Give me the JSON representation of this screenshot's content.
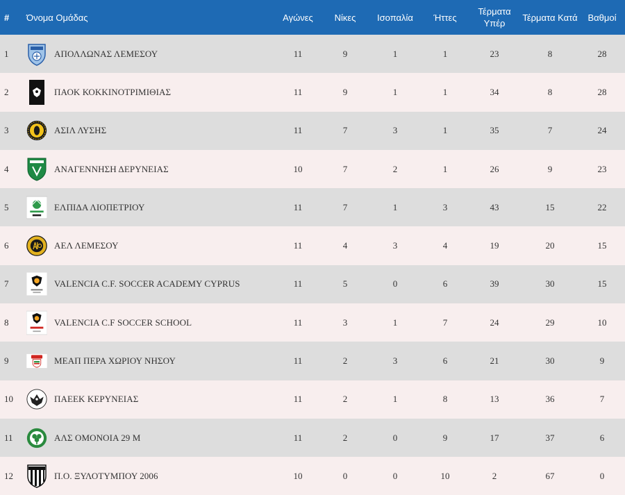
{
  "headers": {
    "pos": "#",
    "team": "Όνομα Ομάδας",
    "played": "Αγώνες",
    "wins": "Νίκες",
    "draws": "Ισοπαλία",
    "losses": "Ήττες",
    "gf": "Τέρματα Υπέρ",
    "ga": "Τέρματα Κατά",
    "pts": "Βαθμοί"
  },
  "colors": {
    "header_bg": "#1e6ab4",
    "row_odd": "#dddddd",
    "row_even": "#f8eeee"
  },
  "rows": [
    {
      "pos": "1",
      "team": "ΑΠΟΛΛΩΝΑΣ ΛΕΜΕΣΟΥ",
      "logo": "apollon-shield-icon",
      "played": "11",
      "wins": "9",
      "draws": "1",
      "losses": "1",
      "gf": "23",
      "ga": "8",
      "pts": "28"
    },
    {
      "pos": "2",
      "team": "ΠΑΟΚ ΚΟΚΚΙΝΟΤΡΙΜΙΘΙΑΣ",
      "logo": "paok-eagle-icon",
      "played": "11",
      "wins": "9",
      "draws": "1",
      "losses": "1",
      "gf": "34",
      "ga": "8",
      "pts": "28"
    },
    {
      "pos": "3",
      "team": "ΑΣΙΛ ΛΥΣΗΣ",
      "logo": "asil-round-crest-icon",
      "played": "11",
      "wins": "7",
      "draws": "3",
      "losses": "1",
      "gf": "35",
      "ga": "7",
      "pts": "24"
    },
    {
      "pos": "4",
      "team": "ΑΝΑΓΕΝΝΗΣΗ ΔΕΡΥΝΕΙΑΣ",
      "logo": "anagennisi-shield-icon",
      "played": "10",
      "wins": "7",
      "draws": "2",
      "losses": "1",
      "gf": "26",
      "ga": "9",
      "pts": "23"
    },
    {
      "pos": "5",
      "team": "ΕΛΠΙΔΑ ΛΙΟΠΕΤΡΙΟΥ",
      "logo": "elpida-crest-icon",
      "played": "11",
      "wins": "7",
      "draws": "1",
      "losses": "3",
      "gf": "43",
      "ga": "15",
      "pts": "22"
    },
    {
      "pos": "6",
      "team": "ΑΕΛ ΛΕΜΕΣΟΥ",
      "logo": "ael-round-crest-icon",
      "played": "11",
      "wins": "4",
      "draws": "3",
      "losses": "4",
      "gf": "19",
      "ga": "20",
      "pts": "15"
    },
    {
      "pos": "7",
      "team": "VALENCIA C.F. SOCCER ACADEMY CYPRUS",
      "logo": "valencia-bat-icon",
      "played": "11",
      "wins": "5",
      "draws": "0",
      "losses": "6",
      "gf": "39",
      "ga": "30",
      "pts": "15"
    },
    {
      "pos": "8",
      "team": "VALENCIA C.F SOCCER SCHOOL",
      "logo": "valencia-school-icon",
      "played": "11",
      "wins": "3",
      "draws": "1",
      "losses": "7",
      "gf": "24",
      "ga": "29",
      "pts": "10"
    },
    {
      "pos": "9",
      "team": "ΜΕΑΠ ΠΕΡΑ ΧΩΡΙΟΥ ΝΗΣΟΥ",
      "logo": "meap-crest-icon",
      "played": "11",
      "wins": "2",
      "draws": "3",
      "losses": "6",
      "gf": "21",
      "ga": "30",
      "pts": "9"
    },
    {
      "pos": "10",
      "team": "ΠΑΕΕΚ ΚΕΡΥΝΕΙΑΣ",
      "logo": "paeek-eagle-icon",
      "played": "11",
      "wins": "2",
      "draws": "1",
      "losses": "8",
      "gf": "13",
      "ga": "36",
      "pts": "7"
    },
    {
      "pos": "11",
      "team": "ΑΛΣ ΟΜΟΝΟΙΑ 29 Μ",
      "logo": "omonoia-clover-icon",
      "played": "11",
      "wins": "2",
      "draws": "0",
      "losses": "9",
      "gf": "17",
      "ga": "37",
      "pts": "6"
    },
    {
      "pos": "12",
      "team": "Π.Ο. ΞΥΛΟΤΥΜΠΟΥ 2006",
      "logo": "xylotymbou-shield-icon",
      "played": "10",
      "wins": "0",
      "draws": "0",
      "losses": "10",
      "gf": "2",
      "ga": "67",
      "pts": "0"
    }
  ]
}
